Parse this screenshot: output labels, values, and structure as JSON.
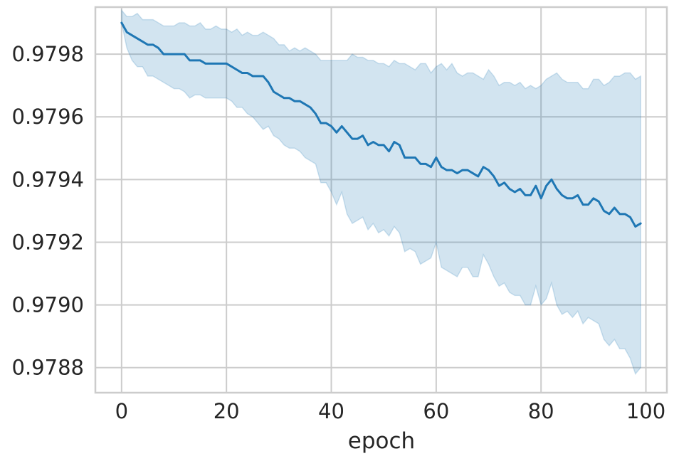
{
  "chart_data": {
    "type": "line",
    "xlabel": "epoch",
    "ylabel": "",
    "xlim": [
      -5,
      104
    ],
    "ylim": [
      0.97872,
      0.97995
    ],
    "x_ticks": [
      0,
      20,
      40,
      60,
      80,
      100
    ],
    "x_tick_labels": [
      "0",
      "20",
      "40",
      "60",
      "80",
      "100"
    ],
    "y_ticks": [
      0.9788,
      0.979,
      0.9792,
      0.9794,
      0.9796,
      0.9798
    ],
    "y_tick_labels": [
      "0.9788",
      "0.9790",
      "0.9792",
      "0.9794",
      "0.9796",
      "0.9798"
    ],
    "grid": true,
    "line_color": "#1f77b4",
    "band_color": "#1f77b4",
    "series": [
      {
        "x": [
          0,
          1,
          2,
          3,
          4,
          5,
          6,
          7,
          8,
          9,
          10,
          11,
          12,
          13,
          14,
          15,
          16,
          17,
          18,
          19,
          20,
          21,
          22,
          23,
          24,
          25,
          26,
          27,
          28,
          29,
          30,
          31,
          32,
          33,
          34,
          35,
          36,
          37,
          38,
          39,
          40,
          41,
          42,
          43,
          44,
          45,
          46,
          47,
          48,
          49,
          50,
          51,
          52,
          53,
          54,
          55,
          56,
          57,
          58,
          59,
          60,
          61,
          62,
          63,
          64,
          65,
          66,
          67,
          68,
          69,
          70,
          71,
          72,
          73,
          74,
          75,
          76,
          77,
          78,
          79,
          80,
          81,
          82,
          83,
          84,
          85,
          86,
          87,
          88,
          89,
          90,
          91,
          92,
          93,
          94,
          95,
          96,
          97,
          98,
          99
        ],
        "mean": [
          0.9799,
          0.97987,
          0.97986,
          0.97985,
          0.97984,
          0.97983,
          0.97983,
          0.97982,
          0.9798,
          0.9798,
          0.9798,
          0.9798,
          0.9798,
          0.97978,
          0.97978,
          0.97978,
          0.97977,
          0.97977,
          0.97977,
          0.97977,
          0.97977,
          0.97976,
          0.97975,
          0.97974,
          0.97974,
          0.97973,
          0.97973,
          0.97973,
          0.97971,
          0.97968,
          0.97967,
          0.97966,
          0.97966,
          0.97965,
          0.97965,
          0.97964,
          0.97963,
          0.97961,
          0.97958,
          0.97958,
          0.97957,
          0.97955,
          0.97957,
          0.97955,
          0.97953,
          0.97953,
          0.97954,
          0.97951,
          0.97952,
          0.97951,
          0.97951,
          0.97949,
          0.97952,
          0.97951,
          0.97947,
          0.97947,
          0.97947,
          0.97945,
          0.97945,
          0.97944,
          0.97947,
          0.97944,
          0.97943,
          0.97943,
          0.97942,
          0.97943,
          0.97943,
          0.97942,
          0.97941,
          0.97944,
          0.97943,
          0.97941,
          0.97938,
          0.97939,
          0.97937,
          0.97936,
          0.97937,
          0.97935,
          0.97935,
          0.97938,
          0.97934,
          0.97938,
          0.9794,
          0.97937,
          0.97935,
          0.97934,
          0.97934,
          0.97935,
          0.97932,
          0.97932,
          0.97934,
          0.97933,
          0.9793,
          0.97929,
          0.97931,
          0.97929,
          0.97929,
          0.97928,
          0.97925,
          0.97926
        ],
        "lower": [
          0.9799,
          0.97982,
          0.97978,
          0.97976,
          0.97976,
          0.97973,
          0.97973,
          0.97972,
          0.97971,
          0.9797,
          0.97969,
          0.97969,
          0.97968,
          0.97966,
          0.97967,
          0.97967,
          0.97966,
          0.97966,
          0.97966,
          0.97966,
          0.97966,
          0.97965,
          0.97963,
          0.97963,
          0.97961,
          0.9796,
          0.97958,
          0.97956,
          0.97957,
          0.97954,
          0.97953,
          0.97951,
          0.9795,
          0.9795,
          0.97949,
          0.97947,
          0.97946,
          0.97945,
          0.97939,
          0.97939,
          0.97936,
          0.97932,
          0.97936,
          0.97929,
          0.97926,
          0.97927,
          0.97928,
          0.97924,
          0.97926,
          0.97923,
          0.97924,
          0.97922,
          0.97925,
          0.97923,
          0.97917,
          0.97918,
          0.97917,
          0.97913,
          0.97914,
          0.97915,
          0.9792,
          0.97912,
          0.97911,
          0.9791,
          0.97909,
          0.97912,
          0.97912,
          0.97909,
          0.97909,
          0.97916,
          0.97913,
          0.97909,
          0.97906,
          0.97907,
          0.97904,
          0.97903,
          0.97903,
          0.979,
          0.979,
          0.97906,
          0.979,
          0.97902,
          0.97907,
          0.979,
          0.97897,
          0.97898,
          0.97896,
          0.97898,
          0.97894,
          0.97896,
          0.97895,
          0.97894,
          0.97889,
          0.97887,
          0.97889,
          0.97886,
          0.97886,
          0.97883,
          0.97878,
          0.9788
        ],
        "upper": [
          0.97994,
          0.97992,
          0.97992,
          0.97993,
          0.97991,
          0.97991,
          0.97991,
          0.9799,
          0.97989,
          0.97989,
          0.97989,
          0.9799,
          0.9799,
          0.97989,
          0.97989,
          0.9799,
          0.97988,
          0.97988,
          0.97989,
          0.97988,
          0.97988,
          0.97987,
          0.97988,
          0.97986,
          0.97987,
          0.97986,
          0.97986,
          0.97987,
          0.97986,
          0.97985,
          0.97983,
          0.97983,
          0.97981,
          0.97982,
          0.97981,
          0.97982,
          0.97981,
          0.9798,
          0.97978,
          0.97978,
          0.97978,
          0.97978,
          0.97978,
          0.97978,
          0.9798,
          0.97979,
          0.97979,
          0.97978,
          0.97978,
          0.97977,
          0.97977,
          0.97976,
          0.97978,
          0.97977,
          0.97977,
          0.97976,
          0.97975,
          0.97977,
          0.97977,
          0.97974,
          0.97976,
          0.97977,
          0.97975,
          0.97977,
          0.97974,
          0.97973,
          0.97974,
          0.97974,
          0.97973,
          0.97972,
          0.97975,
          0.97973,
          0.9797,
          0.97971,
          0.97971,
          0.9797,
          0.97971,
          0.97969,
          0.9797,
          0.97969,
          0.9797,
          0.97972,
          0.97973,
          0.97974,
          0.97972,
          0.97971,
          0.97971,
          0.97971,
          0.97969,
          0.97969,
          0.97972,
          0.97972,
          0.9797,
          0.97971,
          0.97973,
          0.97973,
          0.97974,
          0.97974,
          0.97972,
          0.97973
        ]
      }
    ]
  }
}
